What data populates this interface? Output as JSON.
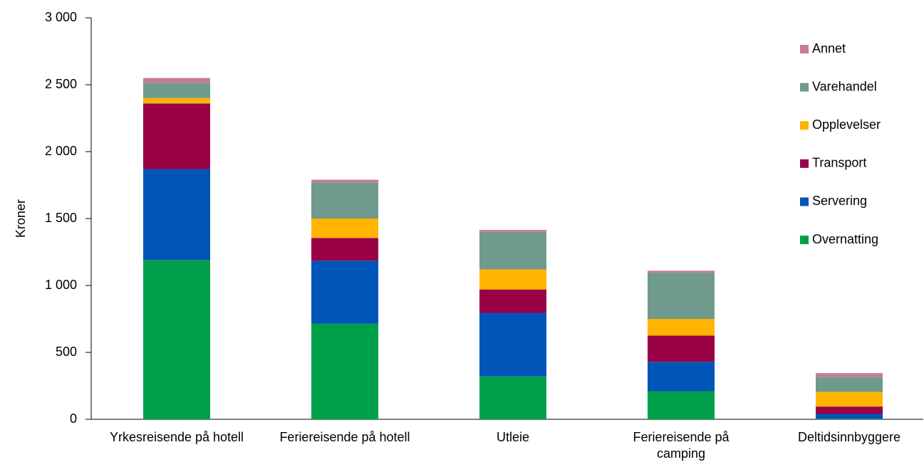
{
  "chart_data": {
    "type": "stacked_bar",
    "ylabel": "Kroner",
    "categories": [
      "Yrkesreisende på hotell",
      "Feriereisende på hotell",
      "Utleie",
      "Feriereisende på camping",
      "Deltidsinnbyggere"
    ],
    "series": [
      {
        "name": "Overnatting",
        "color": "#00a04b",
        "values": [
          1190,
          715,
          320,
          210,
          5
        ]
      },
      {
        "name": "Servering",
        "color": "#0055b8",
        "values": [
          680,
          470,
          475,
          220,
          35
        ]
      },
      {
        "name": "Transport",
        "color": "#990046",
        "values": [
          490,
          170,
          175,
          195,
          55
        ]
      },
      {
        "name": "Opplevelser",
        "color": "#ffb400",
        "values": [
          40,
          145,
          150,
          125,
          110
        ]
      },
      {
        "name": "Varehandel",
        "color": "#6f9a8d",
        "values": [
          115,
          270,
          280,
          345,
          110
        ]
      },
      {
        "name": "Annet",
        "color": "#c87d8e",
        "values": [
          35,
          20,
          15,
          15,
          30
        ]
      }
    ],
    "ylim": [
      0,
      3000
    ],
    "yticks": [
      0,
      500,
      {
        "value": 1000,
        "label": "1 000"
      },
      {
        "value": 1500,
        "label": "1 500"
      },
      {
        "value": 2000,
        "label": "2 000"
      },
      {
        "value": 2500,
        "label": "2 500"
      },
      {
        "value": 3000,
        "label": "3 000"
      }
    ],
    "legend": "right"
  }
}
